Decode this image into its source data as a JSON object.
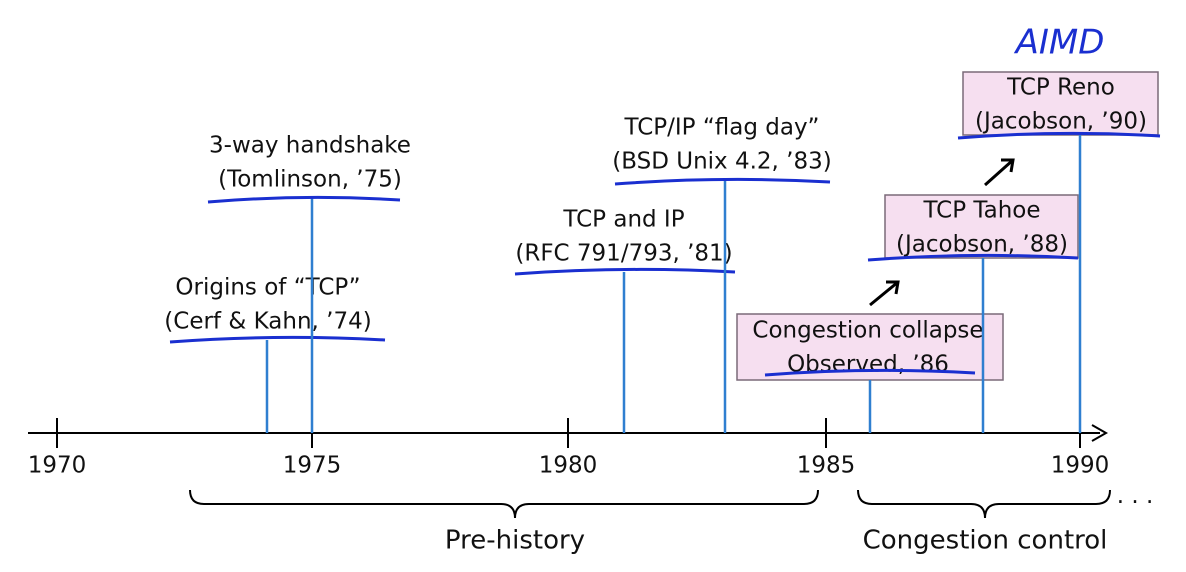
{
  "axis": {
    "ticks": [
      "1970",
      "1975",
      "1980",
      "1985",
      "1990"
    ]
  },
  "events": [
    {
      "lines": [
        "Origins of “TCP”",
        "(Cerf & Kahn, ’74)"
      ]
    },
    {
      "lines": [
        "3-way handshake",
        "(Tomlinson, ’75)"
      ]
    },
    {
      "lines": [
        "TCP and IP",
        "(RFC 791/793, ’81)"
      ]
    },
    {
      "lines": [
        "TCP/IP “flag day”",
        "(BSD Unix 4.2, ’83)"
      ]
    },
    {
      "lines": [
        "Congestion collapse",
        "Observed, ’86"
      ]
    },
    {
      "lines": [
        "TCP Tahoe",
        "(Jacobson, ’88)"
      ]
    },
    {
      "lines": [
        "TCP Reno",
        "(Jacobson, ’90)"
      ]
    }
  ],
  "spans": [
    {
      "label": "Pre-history"
    },
    {
      "label": "Congestion control"
    }
  ],
  "annotation": "AIMD",
  "ellipsis": "· · ·"
}
